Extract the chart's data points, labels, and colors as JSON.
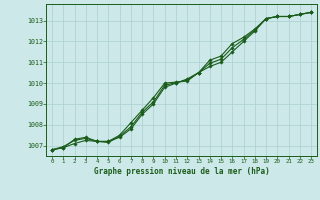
{
  "title": "Graphe pression niveau de la mer (hPa)",
  "background_color": "#cce8e8",
  "line_color": "#1a5c1a",
  "grid_color": "#aacfcf",
  "ylim": [
    1006.5,
    1013.8
  ],
  "xlim": [
    -0.5,
    23.5
  ],
  "yticks": [
    1007,
    1008,
    1009,
    1010,
    1011,
    1012,
    1013
  ],
  "xticks": [
    0,
    1,
    2,
    3,
    4,
    5,
    6,
    7,
    8,
    9,
    10,
    11,
    12,
    13,
    14,
    15,
    16,
    17,
    18,
    19,
    20,
    21,
    22,
    23
  ],
  "line1": [
    1006.8,
    1006.9,
    1007.1,
    1007.25,
    1007.2,
    1007.2,
    1007.4,
    1007.8,
    1008.5,
    1009.0,
    1009.8,
    1010.0,
    1010.2,
    1010.5,
    1010.8,
    1011.0,
    1011.5,
    1012.0,
    1012.5,
    1013.1,
    1013.2,
    1013.2,
    1013.3,
    1013.4
  ],
  "line2": [
    1006.8,
    1006.9,
    1007.3,
    1007.4,
    1007.2,
    1007.2,
    1007.5,
    1008.1,
    1008.7,
    1009.3,
    1010.0,
    1010.05,
    1010.1,
    1010.5,
    1011.1,
    1011.3,
    1011.9,
    1012.2,
    1012.6,
    1013.1,
    1013.2,
    1013.2,
    1013.3,
    1013.4
  ],
  "line3": [
    1006.8,
    1006.95,
    1007.25,
    1007.35,
    1007.2,
    1007.15,
    1007.45,
    1007.9,
    1008.6,
    1009.1,
    1009.9,
    1010.02,
    1010.15,
    1010.5,
    1010.95,
    1011.15,
    1011.7,
    1012.1,
    1012.55,
    1013.1,
    1013.2,
    1013.2,
    1013.3,
    1013.4
  ]
}
